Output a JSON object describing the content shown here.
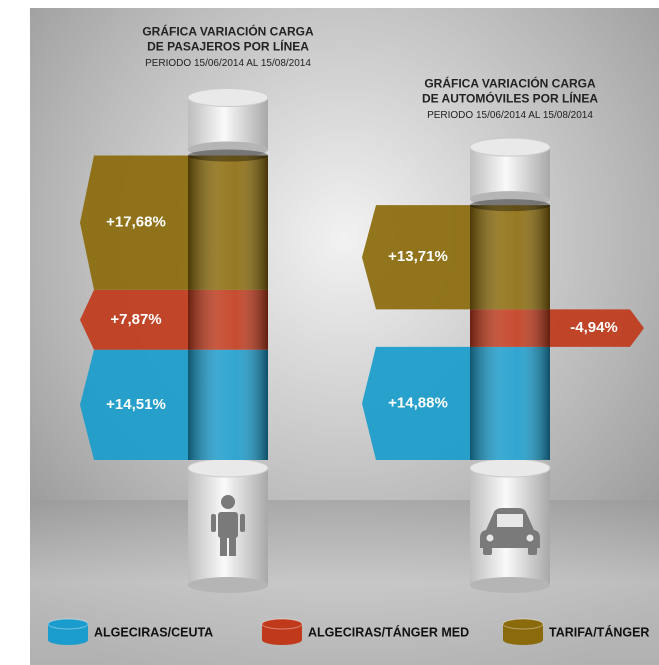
{
  "legend": [
    {
      "name": "ALGECIRAS/CEUTA",
      "color": "#1a9ccc"
    },
    {
      "name": "ALGECIRAS/TÁNGER MED",
      "color": "#c0391b"
    },
    {
      "name": "TARIFA/TÁNGER",
      "color": "#8a6a0a"
    }
  ],
  "chart_data": [
    {
      "type": "cylinder",
      "title": [
        "GRÁFICA VARIACIÓN CARGA",
        "DE PASAJEROS POR LÍNEA"
      ],
      "subtitle": "PERIODO 15/06/2014 AL 15/08/2014",
      "values": [
        14.51,
        7.87,
        17.68
      ],
      "value_labels": [
        "+14,51%",
        "+7,87%",
        "+17,68%"
      ]
    },
    {
      "type": "cylinder",
      "title": [
        "GRÁFICA VARIACIÓN CARGA",
        "DE AUTOMÓVILES POR LÍNEA"
      ],
      "subtitle": "PERIODO 15/06/2014 AL 15/08/2014",
      "values": [
        14.88,
        -4.94,
        13.71
      ],
      "value_labels": [
        "+14,88%",
        "-4,94%",
        "+13,71%"
      ]
    }
  ]
}
